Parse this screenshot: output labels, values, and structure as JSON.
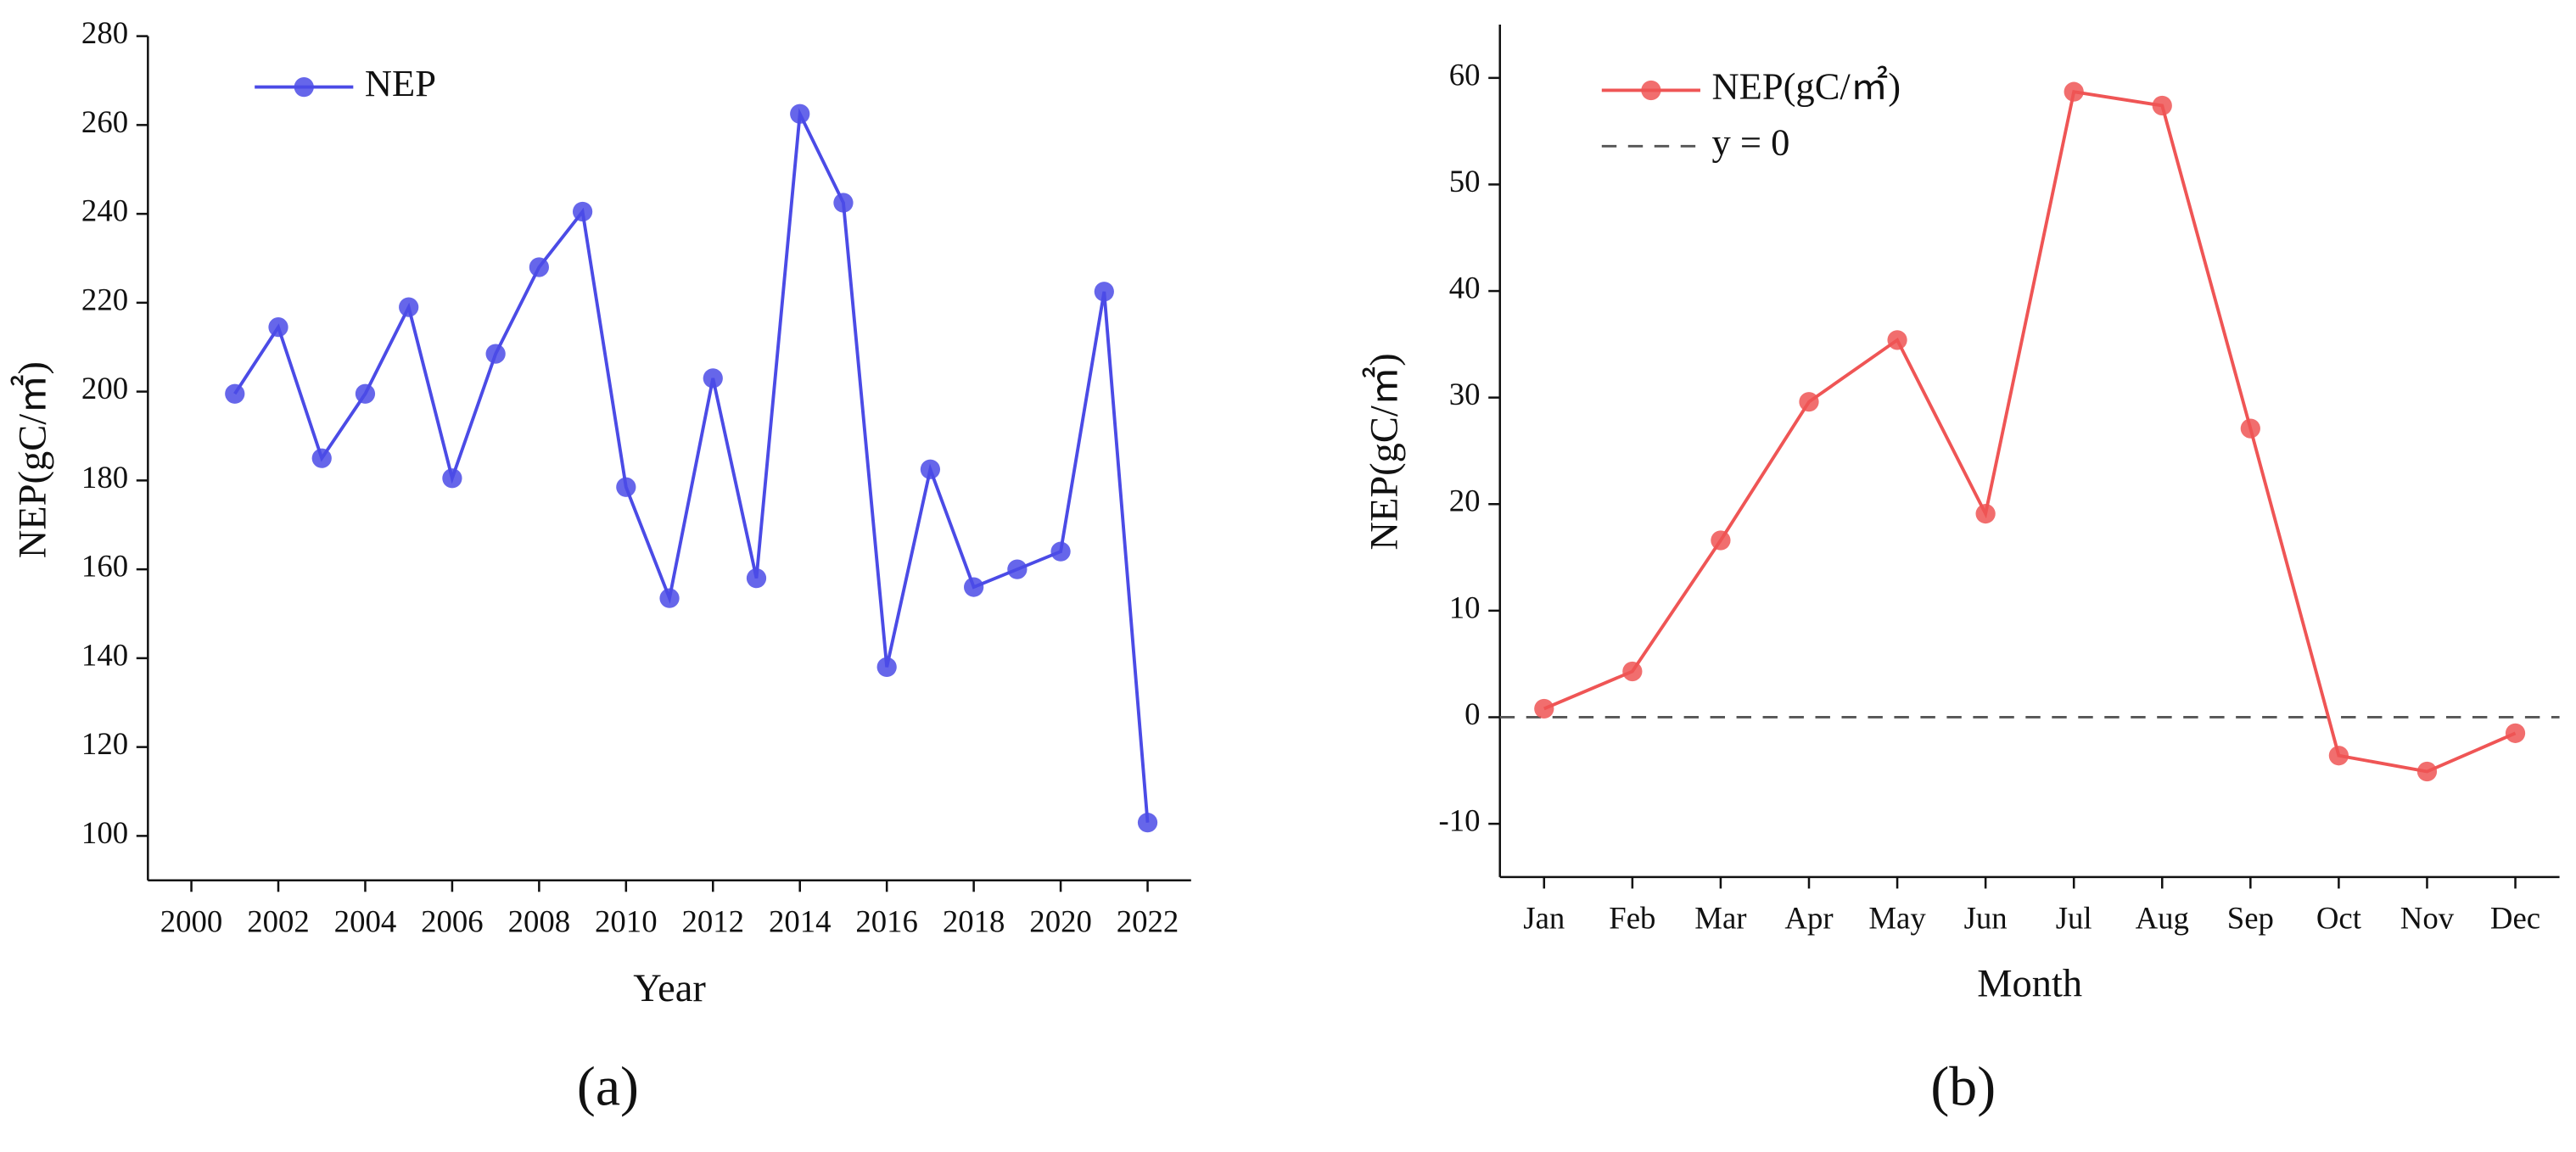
{
  "chart_data": [
    {
      "type": "line",
      "label": "(a)",
      "x_label": "Year",
      "y_label": "NEP(gC/㎡)",
      "x": [
        2001,
        2002,
        2003,
        2004,
        2005,
        2006,
        2007,
        2008,
        2009,
        2010,
        2011,
        2012,
        2013,
        2014,
        2015,
        2016,
        2017,
        2018,
        2019,
        2020,
        2021,
        2022
      ],
      "series": [
        {
          "name": "NEP",
          "color": "#4b4be6",
          "values": [
            199.5,
            214.5,
            185,
            199.5,
            219,
            180.5,
            208.5,
            228,
            240.5,
            178.5,
            153.5,
            203,
            158,
            262.5,
            242.5,
            138,
            182.5,
            156,
            160,
            164,
            222.5,
            103
          ]
        }
      ],
      "xlim": [
        1999,
        2023
      ],
      "xticks": [
        2000,
        2002,
        2004,
        2006,
        2008,
        2010,
        2012,
        2014,
        2016,
        2018,
        2020,
        2022
      ],
      "ylim": [
        90,
        280
      ],
      "yticks": [
        100,
        120,
        140,
        160,
        180,
        200,
        220,
        240,
        260,
        280
      ]
    },
    {
      "type": "line",
      "label": "(b)",
      "x_label": "Month",
      "y_label": "NEP(gC/㎡)",
      "categories": [
        "Jan",
        "Feb",
        "Mar",
        "Apr",
        "May",
        "Jun",
        "Jul",
        "Aug",
        "Sep",
        "Oct",
        "Nov",
        "Dec"
      ],
      "series": [
        {
          "name": "NEP(gC/㎡)",
          "color": "#ef5555",
          "values": [
            0.8,
            4.3,
            16.6,
            29.6,
            35.4,
            19.1,
            58.7,
            57.4,
            27.1,
            -3.6,
            -5.1,
            -1.5
          ]
        }
      ],
      "reference_lines": [
        {
          "name": "y = 0",
          "value": 0,
          "color": "#555555"
        }
      ],
      "ylim": [
        -15,
        65
      ],
      "yticks": [
        -10,
        0,
        10,
        20,
        30,
        40,
        50,
        60
      ]
    }
  ]
}
